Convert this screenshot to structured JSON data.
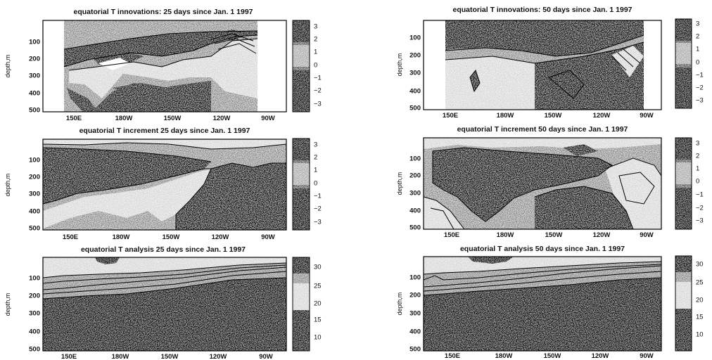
{
  "colors": {
    "dark": "#151515",
    "mid": "#8e8e8e",
    "light": "#d7d7d7",
    "white": "#ffffff",
    "line": "#000000"
  },
  "chart_data": [
    {
      "type": "heatmap",
      "title": "equatorial T innovations: 25 days since Jan. 1 1997",
      "ylabel": "depth,m",
      "x_ticks": [
        "150E",
        "180W",
        "150W",
        "120W",
        "90W"
      ],
      "y_ticks": [
        "100",
        "200",
        "300",
        "400",
        "500"
      ],
      "colorbar_ticks": [
        "3",
        "2",
        "1",
        "0",
        "−1",
        "−2",
        "−3"
      ],
      "colorbar_range": [
        -3,
        3
      ]
    },
    {
      "type": "heatmap",
      "title": "equatorial T innovations: 50 days since Jan. 1 1997",
      "ylabel": "depth,m",
      "x_ticks": [
        "150E",
        "180W",
        "150W",
        "120W",
        "90W"
      ],
      "y_ticks": [
        "100",
        "200",
        "300",
        "400",
        "500"
      ],
      "colorbar_ticks": [
        "3",
        "2",
        "1",
        "0",
        "−1",
        "−2",
        "−3"
      ],
      "colorbar_range": [
        -3,
        3
      ]
    },
    {
      "type": "heatmap",
      "title": "equatorial T increment 25 days since Jan. 1 1997",
      "ylabel": "depth,m",
      "x_ticks": [
        "150E",
        "180W",
        "150W",
        "120W",
        "90W"
      ],
      "y_ticks": [
        "100",
        "200",
        "300",
        "400",
        "500"
      ],
      "colorbar_ticks": [
        "3",
        "2",
        "1",
        "0",
        "−1",
        "−2",
        "−3"
      ],
      "colorbar_range": [
        -3,
        3
      ]
    },
    {
      "type": "heatmap",
      "title": "equatorial T increment 50 days since Jan. 1 1997",
      "ylabel": "depth,m",
      "x_ticks": [
        "150E",
        "180W",
        "150W",
        "120W",
        "90W"
      ],
      "y_ticks": [
        "100",
        "200",
        "300",
        "400",
        "500"
      ],
      "colorbar_ticks": [
        "3",
        "2",
        "1",
        "0",
        "−1",
        "−2",
        "−3"
      ],
      "colorbar_range": [
        -3,
        3
      ]
    },
    {
      "type": "heatmap",
      "title": "equatorial T analysis 25 days since Jan. 1 1997",
      "ylabel": "depth,m",
      "x_ticks": [
        "150E",
        "180W",
        "150W",
        "120W",
        "90W"
      ],
      "y_ticks": [
        "100",
        "200",
        "300",
        "400",
        "500"
      ],
      "colorbar_ticks": [
        "30",
        "25",
        "20",
        "15",
        "10"
      ],
      "colorbar_range": [
        8,
        32
      ]
    },
    {
      "type": "heatmap",
      "title": "equatorial T analysis 50 days since Jan. 1 1997",
      "ylabel": "depth,m",
      "x_ticks": [
        "150E",
        "180W",
        "150W",
        "120W",
        "90W"
      ],
      "y_ticks": [
        "100",
        "200",
        "300",
        "400",
        "500"
      ],
      "colorbar_ticks": [
        "30",
        "25",
        "20",
        "15",
        "10"
      ],
      "colorbar_range": [
        8,
        32
      ]
    }
  ]
}
